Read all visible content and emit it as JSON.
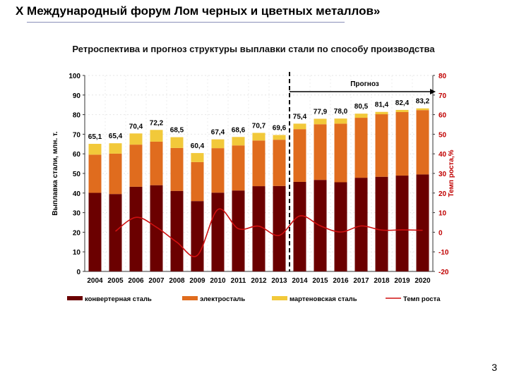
{
  "header": {
    "title": "X Международный форум Лом черных и цветных металлов»"
  },
  "page_number": "3",
  "chart_data": {
    "type": "bar",
    "stacked": true,
    "title": "Ретроспектива и прогноз структуры выплавки стали по способу производства",
    "ylabel": "Выплавка стали, млн. т.",
    "y2label": "Темп роста,%",
    "ylim": [
      0,
      100
    ],
    "y2lim": [
      -20,
      80
    ],
    "yticks": [
      "0",
      "10",
      "20",
      "30",
      "40",
      "50",
      "60",
      "70",
      "80",
      "90",
      "100"
    ],
    "y2ticks": [
      "-20",
      "-10",
      "0",
      "10",
      "20",
      "30",
      "40",
      "50",
      "60",
      "70",
      "80"
    ],
    "forecast_label": "Прогноз",
    "forecast_start_index": 10,
    "categories": [
      "2004",
      "2005",
      "2006",
      "2007",
      "2008",
      "2009",
      "2010",
      "2011",
      "2012",
      "2013",
      "2014",
      "2015",
      "2016",
      "2017",
      "2018",
      "2019",
      "2020"
    ],
    "totals": [
      "65,1",
      "65,4",
      "70,4",
      "72,2",
      "68,5",
      "60,4",
      "67,4",
      "68,6",
      "70,7",
      "69,6",
      "75,4",
      "77,9",
      "78,0",
      "80,5",
      "81,4",
      "82,4",
      "83,2"
    ],
    "series": [
      {
        "name": "конвертерная сталь",
        "color": "#6b0000",
        "values": [
          40.1,
          39.5,
          43.2,
          44.0,
          41.1,
          35.9,
          40.2,
          41.3,
          43.5,
          43.6,
          45.7,
          46.7,
          45.5,
          47.8,
          48.3,
          48.9,
          49.5
        ]
      },
      {
        "name": "электросталь",
        "color": "#e06c1e",
        "values": [
          19.5,
          20.6,
          21.5,
          22.2,
          21.9,
          19.9,
          22.7,
          23.0,
          23.3,
          23.6,
          26.9,
          28.4,
          29.9,
          30.6,
          31.9,
          32.4,
          32.8
        ]
      },
      {
        "name": "мартеновская сталь",
        "color": "#f2c93a",
        "values": [
          5.5,
          5.3,
          5.7,
          6.0,
          5.5,
          4.6,
          4.5,
          4.3,
          3.9,
          2.4,
          2.8,
          2.8,
          2.6,
          2.1,
          1.2,
          1.1,
          0.9
        ]
      }
    ],
    "line": {
      "name": "Темп роста",
      "color": "#d01010",
      "axis": "right",
      "values": [
        null,
        0.5,
        7.6,
        2.6,
        -5.1,
        -11.8,
        11.6,
        1.8,
        3.1,
        -1.6,
        8.3,
        3.3,
        0.1,
        3.2,
        1.1,
        1.2,
        1.0
      ]
    },
    "legend": "bottom"
  }
}
